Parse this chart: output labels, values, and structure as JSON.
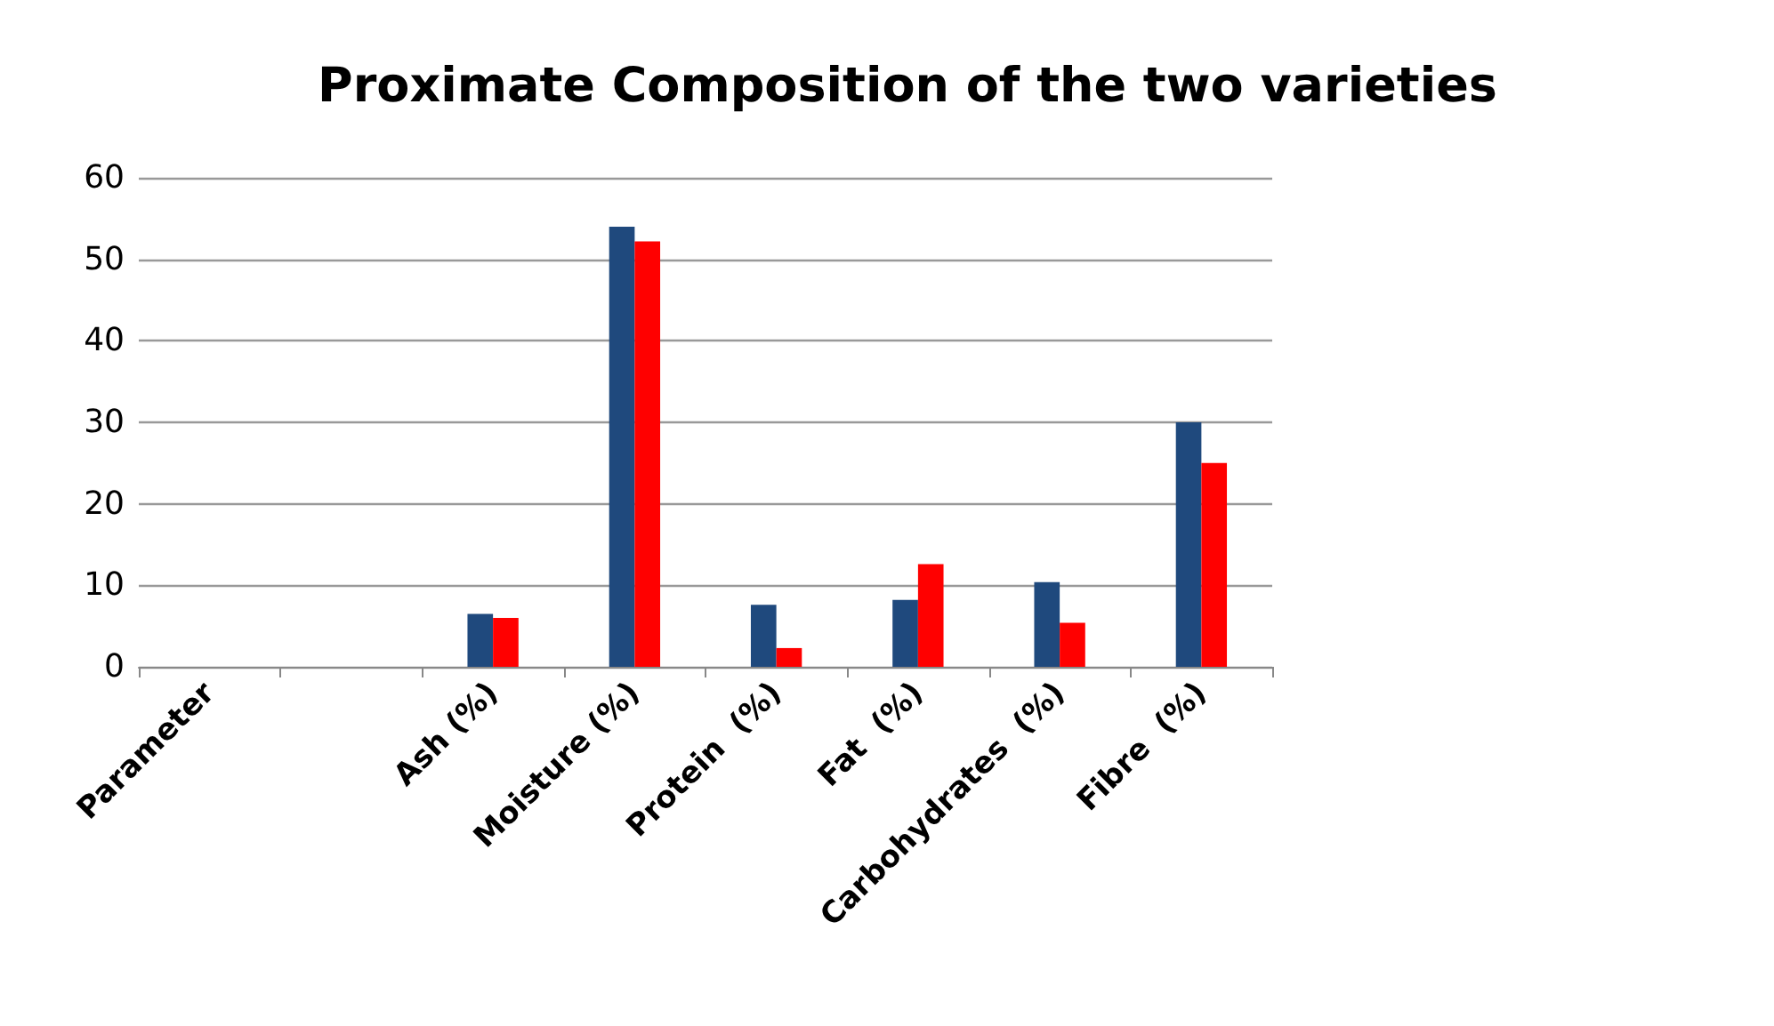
{
  "chart_data": {
    "type": "bar",
    "title": "Proximate Composition of the two varieties",
    "categories": [
      "Parameter",
      null,
      "Ash (%)",
      "Moisture (%)",
      "Protein  (%)",
      "Fat  (%)",
      "Carbohydrates  (%)",
      "Fibre  (%)"
    ],
    "series": [
      {
        "color": "#1f497d",
        "values": [
          null,
          null,
          6.5,
          54,
          7.6,
          8.2,
          10.4,
          30
        ]
      },
      {
        "color": "#ff0000",
        "values": [
          null,
          null,
          6,
          52.2,
          2.3,
          12.6,
          5.4,
          25
        ]
      }
    ],
    "ylim": [
      0,
      60
    ],
    "yticks": [
      0,
      10,
      20,
      30,
      40,
      50,
      60
    ],
    "grid": "y"
  }
}
